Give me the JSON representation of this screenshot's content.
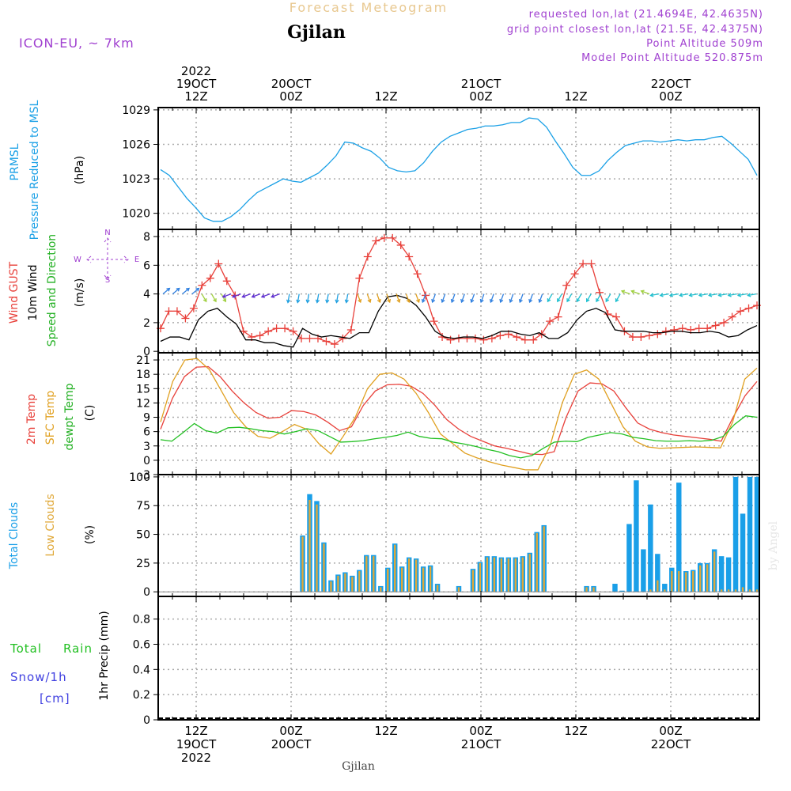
{
  "header": {
    "title": "Forecast Meteogram",
    "location": "Gjilan",
    "model": "ICON-EU, ~ 7km",
    "requested": "requested lon,lat (21.4694E, 42.4635N)",
    "grid": "grid point closest lon,lat (21.5E, 42.4375N)",
    "point_alt": "Point Altitude 509m",
    "model_alt": "Model Point Altitude 520.875m",
    "footer_location": "Gjilan",
    "credit": "by Angel"
  },
  "colors": {
    "pressure": "#1aa0e6",
    "gust": "#e8403a",
    "wind": "#000000",
    "temp2m": "#e8403a",
    "sfctemp": "#e0a020",
    "dewpt": "#22c022",
    "total_clouds": "#1a9fe8",
    "low_clouds": "#e0a838",
    "rain": "#22c022",
    "snow": "#4040e0",
    "purple": "#a040d0"
  },
  "time_axis": {
    "top_labels": [
      {
        "lines": [
          "2022",
          "19OCT",
          "12Z"
        ],
        "t": 12
      },
      {
        "lines": [
          "20OCT",
          "00Z"
        ],
        "t": 24
      },
      {
        "lines": [
          "12Z"
        ],
        "t": 36
      },
      {
        "lines": [
          "21OCT",
          "00Z"
        ],
        "t": 48
      },
      {
        "lines": [
          "12Z"
        ],
        "t": 60
      },
      {
        "lines": [
          "22OCT",
          "00Z"
        ],
        "t": 72
      }
    ],
    "bottom_labels": [
      {
        "lines": [
          "12Z",
          "19OCT",
          "2022"
        ],
        "t": 12
      },
      {
        "lines": [
          "00Z",
          "20OCT"
        ],
        "t": 24
      },
      {
        "lines": [
          "12Z"
        ],
        "t": 36
      },
      {
        "lines": [
          "00Z",
          "21OCT"
        ],
        "t": 48
      },
      {
        "lines": [
          "12Z"
        ],
        "t": 60
      },
      {
        "lines": [
          "00Z",
          "22OCT"
        ],
        "t": 72
      }
    ],
    "range_hours": [
      7.2,
      83.2
    ]
  },
  "chart_data": [
    {
      "type": "line",
      "panel": "pressure",
      "ylabels": [
        "PRMSL",
        "Pressure Reduced to MSL",
        "(hPa)"
      ],
      "ylim": [
        1018.6,
        1029.2
      ],
      "yticks": [
        1020,
        1023,
        1026,
        1029
      ],
      "grid": true,
      "series": [
        {
          "key": "pressure",
          "color_key": "pressure",
          "values": [
            1023.8,
            1023.3,
            1022.3,
            1021.3,
            1020.5,
            1019.6,
            1019.3,
            1019.3,
            1019.7,
            1020.3,
            1021.1,
            1021.8,
            1022.2,
            1022.6,
            1023.0,
            1022.8,
            1022.7,
            1023.1,
            1023.5,
            1024.2,
            1025.0,
            1026.2,
            1026.1,
            1025.7,
            1025.4,
            1024.8,
            1024.0,
            1023.7,
            1023.6,
            1023.7,
            1024.4,
            1025.4,
            1026.2,
            1026.7,
            1027.0,
            1027.3,
            1027.4,
            1027.6,
            1027.6,
            1027.7,
            1027.9,
            1027.9,
            1028.3,
            1028.2,
            1027.5,
            1026.3,
            1025.2,
            1024.0,
            1023.3,
            1023.3,
            1023.7,
            1024.6,
            1025.3,
            1025.9,
            1026.1,
            1026.3,
            1026.3,
            1026.2,
            1026.3,
            1026.4,
            1026.3,
            1026.4,
            1026.4,
            1026.6,
            1026.7,
            1026.1,
            1025.4,
            1024.7,
            1023.3
          ]
        }
      ]
    },
    {
      "type": "line",
      "panel": "wind",
      "ylabels": [
        "Wind GUST",
        "10m Wind",
        "Speed and Direction",
        "(m/s)"
      ],
      "compass": {
        "n": "N",
        "s": "S",
        "w": "W",
        "e": "E"
      },
      "ylim": [
        -0.1,
        8.5
      ],
      "yticks": [
        0,
        2,
        4,
        6,
        8
      ],
      "grid": true,
      "series": [
        {
          "key": "gust",
          "color_key": "gust",
          "marker": "+",
          "values": [
            1.6,
            2.8,
            2.8,
            2.3,
            3.0,
            4.6,
            5.1,
            6.1,
            4.9,
            3.9,
            1.4,
            1.0,
            1.1,
            1.4,
            1.6,
            1.6,
            1.4,
            0.9,
            0.9,
            0.9,
            0.7,
            0.5,
            0.9,
            1.5,
            5.1,
            6.6,
            7.7,
            7.9,
            7.9,
            7.4,
            6.6,
            5.4,
            3.9,
            2.1,
            1.0,
            0.8,
            0.9,
            0.9,
            0.9,
            0.8,
            0.9,
            1.1,
            1.2,
            1.0,
            0.8,
            0.8,
            1.2,
            2.1,
            2.4,
            4.6,
            5.4,
            6.1,
            6.1,
            4.1,
            2.6,
            2.4,
            1.4,
            1.0,
            1.0,
            1.1,
            1.2,
            1.4,
            1.5,
            1.6,
            1.5,
            1.6,
            1.6,
            1.8,
            2.0,
            2.4,
            2.8,
            3.0,
            3.2
          ]
        },
        {
          "key": "wind",
          "color_key": "wind",
          "values": [
            0.7,
            1.0,
            1.0,
            0.8,
            2.2,
            2.8,
            3.0,
            2.4,
            1.9,
            0.8,
            0.8,
            0.6,
            0.6,
            0.4,
            0.3,
            1.6,
            1.2,
            1.0,
            1.1,
            1.0,
            0.9,
            1.3,
            1.3,
            2.8,
            3.8,
            3.9,
            3.7,
            3.2,
            2.4,
            1.4,
            1.0,
            0.9,
            1.0,
            1.0,
            0.9,
            1.1,
            1.4,
            1.4,
            1.2,
            1.1,
            1.3,
            0.9,
            0.9,
            1.3,
            2.2,
            2.8,
            3.0,
            2.7,
            1.5,
            1.4,
            1.4,
            1.4,
            1.3,
            1.3,
            1.4,
            1.4,
            1.3,
            1.3,
            1.4,
            1.3,
            1.0,
            1.1,
            1.5,
            1.8
          ]
        }
      ]
    },
    {
      "type": "line",
      "panel": "temperature",
      "ylabels": [
        "2m Temp",
        "SFC Temp",
        "dewpt Temp",
        "(C)"
      ],
      "ylim": [
        -3,
        22.5
      ],
      "yticks": [
        -3,
        0,
        3,
        6,
        9,
        12,
        15,
        18,
        21
      ],
      "grid": true,
      "series": [
        {
          "key": "temp2m",
          "color_key": "temp2m",
          "values": [
            6.5,
            13.0,
            17.5,
            19.5,
            19.6,
            17.5,
            14.5,
            12.0,
            10.0,
            8.8,
            9.0,
            10.4,
            10.2,
            9.5,
            8.0,
            6.2,
            7.0,
            11.5,
            14.5,
            15.8,
            15.9,
            15.5,
            14.0,
            11.5,
            8.5,
            6.5,
            5.0,
            4.0,
            3.0,
            2.5,
            1.9,
            1.3,
            1.2,
            1.8,
            9.0,
            14.5,
            16.2,
            16.0,
            14.5,
            11.0,
            7.8,
            6.5,
            5.8,
            5.3,
            5.0,
            4.7,
            4.4,
            4.0,
            9.0,
            13.5,
            16.5
          ]
        },
        {
          "key": "sfctemp",
          "color_key": "sfctemp",
          "values": [
            8.0,
            16.5,
            21.0,
            21.3,
            19.0,
            14.5,
            10.0,
            7.0,
            5.0,
            4.6,
            6.0,
            7.5,
            6.5,
            3.5,
            1.3,
            5.0,
            9.0,
            15.0,
            18.0,
            18.3,
            17.0,
            14.0,
            10.0,
            5.5,
            3.5,
            1.5,
            0.5,
            -0.3,
            -1.0,
            -1.5,
            -2.0,
            -2.0,
            3.0,
            12.0,
            18.0,
            18.9,
            17.0,
            12.0,
            7.0,
            4.0,
            2.8,
            2.5,
            2.6,
            2.7,
            2.8,
            2.7,
            2.6,
            8.0,
            17.0,
            19.3
          ]
        },
        {
          "key": "dewpt",
          "color_key": "dewpt",
          "values": [
            4.3,
            4.0,
            5.8,
            7.7,
            6.2,
            5.7,
            6.8,
            6.9,
            6.6,
            6.2,
            6.0,
            5.5,
            6.0,
            6.6,
            6.2,
            5.0,
            3.8,
            3.9,
            4.1,
            4.5,
            4.8,
            5.2,
            5.9,
            5.0,
            4.6,
            4.5,
            3.8,
            3.4,
            2.9,
            2.3,
            1.8,
            1.0,
            0.5,
            1.0,
            2.5,
            3.8,
            4.0,
            3.9,
            4.8,
            5.3,
            5.8,
            5.5,
            4.8,
            4.5,
            4.1,
            4.0,
            4.0,
            4.1,
            4.0,
            4.2,
            5.0,
            7.5,
            9.3,
            9.0
          ]
        }
      ]
    },
    {
      "type": "bar",
      "panel": "clouds",
      "ylabels": [
        "Total Clouds",
        "Low Clouds",
        "(%)"
      ],
      "ylim": [
        -4,
        102
      ],
      "yticks": [
        0,
        25,
        50,
        75,
        100
      ],
      "grid": true,
      "series": [
        {
          "key": "total",
          "color_key": "total_clouds",
          "values": [
            0,
            0,
            0,
            0,
            0,
            0,
            0,
            0,
            0,
            0,
            0,
            0,
            0,
            0,
            0,
            0,
            0,
            0,
            0,
            0,
            49,
            85,
            79,
            43,
            10,
            15,
            17,
            14,
            19,
            32,
            32,
            5,
            21,
            42,
            22,
            30,
            29,
            22,
            23,
            7,
            0,
            0,
            5,
            0,
            20,
            26,
            31,
            31,
            30,
            30,
            30,
            31,
            34,
            52,
            58,
            0,
            0,
            0,
            0,
            0,
            5,
            5,
            0,
            0,
            7,
            1,
            59,
            97,
            37,
            76,
            33,
            7,
            21,
            95,
            18,
            19,
            25,
            25,
            37,
            31,
            30,
            100,
            68,
            100,
            100
          ]
        },
        {
          "key": "low",
          "color_key": "low_clouds",
          "values": [
            0,
            0,
            0,
            0,
            0,
            0,
            0,
            0,
            0,
            0,
            0,
            0,
            0,
            0,
            0,
            0,
            0,
            0,
            0,
            0,
            48,
            80,
            76,
            42,
            9,
            14,
            16,
            13,
            18,
            31,
            31,
            4,
            20,
            41,
            21,
            29,
            28,
            21,
            22,
            6,
            0,
            0,
            4,
            0,
            19,
            25,
            30,
            30,
            29,
            29,
            29,
            30,
            33,
            51,
            57,
            0,
            0,
            0,
            0,
            0,
            4,
            4,
            0,
            0,
            0,
            0,
            0,
            0,
            0,
            2,
            10,
            2,
            18,
            18,
            17,
            18,
            23,
            24,
            35,
            2,
            2,
            2,
            4,
            2,
            2
          ]
        }
      ]
    },
    {
      "type": "line",
      "panel": "precip",
      "ylabels": [
        "1hr Precip (mm)"
      ],
      "side_labels": {
        "total": "Total",
        "rain": "Rain",
        "snow": "Snow/1h",
        "unit": "[cm]"
      },
      "ylim": [
        0,
        0.98
      ],
      "yticks": [
        0,
        0.2,
        0.4,
        0.6,
        0.8
      ],
      "grid": true,
      "series": []
    }
  ]
}
